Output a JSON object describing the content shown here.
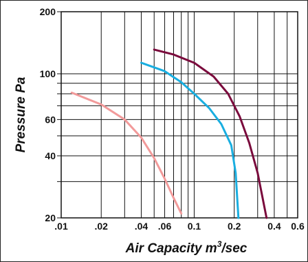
{
  "chart_data": {
    "type": "line",
    "xlabel": "Air Capacity m",
    "xlabel_sup": "3",
    "xlabel_suffix": "/sec",
    "ylabel": "Pressure Pa",
    "xscale": "log",
    "yscale": "log",
    "xlim": [
      0.01,
      0.6
    ],
    "ylim": [
      20,
      200
    ],
    "grid": true,
    "x_ticks": [
      {
        "value": 0.01,
        "label": ".01"
      },
      {
        "value": 0.02,
        "label": ".02"
      },
      {
        "value": 0.04,
        "label": ".04"
      },
      {
        "value": 0.06,
        "label": ".06"
      },
      {
        "value": 0.1,
        "label": "0.1"
      },
      {
        "value": 0.2,
        "label": "0.2"
      },
      {
        "value": 0.4,
        "label": "0.4"
      },
      {
        "value": 0.6,
        "label": "0.6"
      }
    ],
    "y_ticks": [
      {
        "value": 20,
        "label": "20"
      },
      {
        "value": 40,
        "label": "40"
      },
      {
        "value": 60,
        "label": "60"
      },
      {
        "value": 100,
        "label": "100"
      },
      {
        "value": 200,
        "label": "200"
      }
    ],
    "x_grid": [
      0.01,
      0.02,
      0.03,
      0.04,
      0.05,
      0.06,
      0.07,
      0.08,
      0.09,
      0.1,
      0.2,
      0.3,
      0.4,
      0.5,
      0.6
    ],
    "y_grid": [
      20,
      30,
      40,
      50,
      60,
      70,
      80,
      90,
      100,
      200
    ],
    "series": [
      {
        "color": "#f29a9a",
        "points": [
          [
            0.012,
            81
          ],
          [
            0.02,
            71
          ],
          [
            0.03,
            60
          ],
          [
            0.04,
            49
          ],
          [
            0.05,
            39
          ],
          [
            0.06,
            31
          ],
          [
            0.07,
            25
          ],
          [
            0.08,
            21
          ]
        ]
      },
      {
        "color": "#19aee0",
        "points": [
          [
            0.04,
            113
          ],
          [
            0.06,
            103
          ],
          [
            0.08,
            91
          ],
          [
            0.1,
            80
          ],
          [
            0.13,
            68
          ],
          [
            0.16,
            57
          ],
          [
            0.19,
            45
          ],
          [
            0.205,
            33
          ],
          [
            0.215,
            20
          ]
        ]
      },
      {
        "color": "#7a0a3c",
        "points": [
          [
            0.05,
            131
          ],
          [
            0.07,
            124
          ],
          [
            0.1,
            113
          ],
          [
            0.14,
            97
          ],
          [
            0.18,
            80
          ],
          [
            0.22,
            62
          ],
          [
            0.26,
            46
          ],
          [
            0.3,
            33
          ],
          [
            0.35,
            20
          ]
        ]
      }
    ]
  }
}
